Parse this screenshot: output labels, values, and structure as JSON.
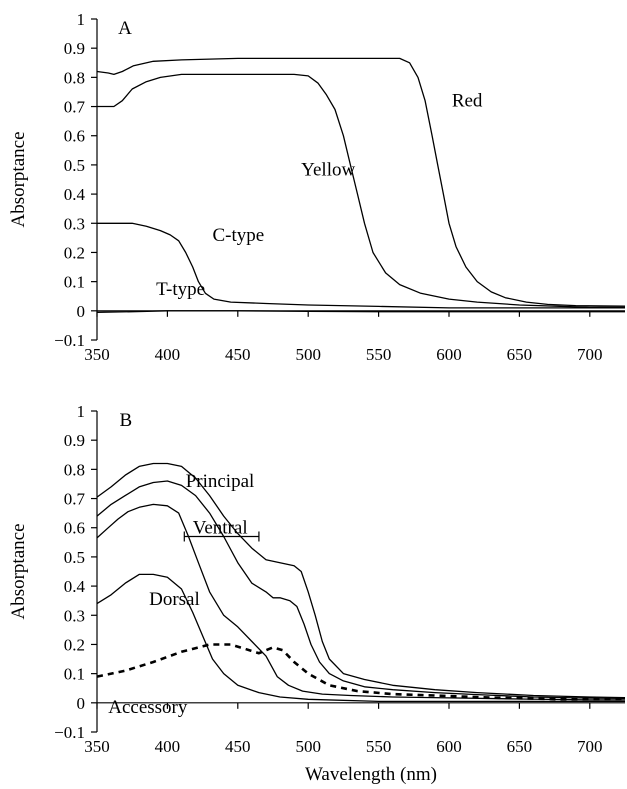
{
  "chart_data": [
    {
      "type": "line",
      "panel": "A",
      "xlabel": "",
      "ylabel": "Absorptance",
      "xlim": [
        350,
        725
      ],
      "ylim": [
        -0.1,
        1
      ],
      "xticks": [
        350,
        400,
        450,
        500,
        550,
        600,
        650,
        700
      ],
      "yticks": [
        -0.1,
        0,
        0.1,
        0.2,
        0.3,
        0.4,
        0.5,
        0.6,
        0.7,
        0.8,
        0.9,
        1
      ],
      "grid": false,
      "series": [
        {
          "name": "Red",
          "style": "solid",
          "points": [
            [
              350,
              0.82
            ],
            [
              358,
              0.815
            ],
            [
              362,
              0.81
            ],
            [
              368,
              0.82
            ],
            [
              376,
              0.84
            ],
            [
              390,
              0.855
            ],
            [
              410,
              0.86
            ],
            [
              450,
              0.865
            ],
            [
              500,
              0.865
            ],
            [
              550,
              0.865
            ],
            [
              565,
              0.865
            ],
            [
              572,
              0.85
            ],
            [
              578,
              0.8
            ],
            [
              583,
              0.72
            ],
            [
              588,
              0.6
            ],
            [
              592,
              0.5
            ],
            [
              596,
              0.4
            ],
            [
              600,
              0.3
            ],
            [
              605,
              0.22
            ],
            [
              612,
              0.15
            ],
            [
              620,
              0.1
            ],
            [
              630,
              0.065
            ],
            [
              640,
              0.045
            ],
            [
              655,
              0.03
            ],
            [
              670,
              0.022
            ],
            [
              690,
              0.018
            ],
            [
              725,
              0.016
            ]
          ]
        },
        {
          "name": "Yellow",
          "style": "solid",
          "points": [
            [
              350,
              0.7
            ],
            [
              358,
              0.7
            ],
            [
              362,
              0.7
            ],
            [
              368,
              0.72
            ],
            [
              375,
              0.76
            ],
            [
              385,
              0.785
            ],
            [
              395,
              0.8
            ],
            [
              410,
              0.81
            ],
            [
              450,
              0.81
            ],
            [
              490,
              0.81
            ],
            [
              500,
              0.805
            ],
            [
              507,
              0.78
            ],
            [
              513,
              0.74
            ],
            [
              519,
              0.69
            ],
            [
              525,
              0.6
            ],
            [
              530,
              0.5
            ],
            [
              535,
              0.4
            ],
            [
              540,
              0.3
            ],
            [
              546,
              0.2
            ],
            [
              555,
              0.13
            ],
            [
              565,
              0.09
            ],
            [
              580,
              0.06
            ],
            [
              600,
              0.04
            ],
            [
              620,
              0.03
            ],
            [
              650,
              0.02
            ],
            [
              700,
              0.012
            ],
            [
              725,
              0.012
            ]
          ]
        },
        {
          "name": "C-type",
          "style": "solid",
          "points": [
            [
              350,
              0.3
            ],
            [
              360,
              0.3
            ],
            [
              375,
              0.3
            ],
            [
              385,
              0.29
            ],
            [
              395,
              0.275
            ],
            [
              402,
              0.26
            ],
            [
              408,
              0.24
            ],
            [
              413,
              0.2
            ],
            [
              418,
              0.15
            ],
            [
              422,
              0.1
            ],
            [
              427,
              0.06
            ],
            [
              433,
              0.04
            ],
            [
              445,
              0.03
            ],
            [
              470,
              0.025
            ],
            [
              500,
              0.02
            ],
            [
              550,
              0.015
            ],
            [
              600,
              0.01
            ],
            [
              650,
              0.01
            ],
            [
              725,
              0.01
            ]
          ]
        },
        {
          "name": "T-type",
          "style": "solid",
          "points": [
            [
              350,
              -0.005
            ],
            [
              375,
              -0.003
            ],
            [
              400,
              0
            ],
            [
              450,
              0
            ],
            [
              500,
              -0.002
            ],
            [
              550,
              -0.003
            ],
            [
              600,
              -0.003
            ],
            [
              650,
              -0.003
            ],
            [
              700,
              -0.003
            ],
            [
              725,
              -0.003
            ]
          ]
        }
      ],
      "annotations": [
        {
          "text": "Red",
          "x": 602,
          "y": 0.72
        },
        {
          "text": "Yellow",
          "x": 495,
          "y": 0.485
        },
        {
          "text": "C-type",
          "x": 432,
          "y": 0.26
        },
        {
          "text": "T-type",
          "x": 392,
          "y": 0.075
        },
        {
          "text": "A",
          "x": 365,
          "y": 0.97
        }
      ]
    },
    {
      "type": "line",
      "panel": "B",
      "xlabel": "Wavelength (nm)",
      "ylabel": "Absorptance",
      "xlim": [
        350,
        725
      ],
      "ylim": [
        -0.1,
        1
      ],
      "xticks": [
        350,
        400,
        450,
        500,
        550,
        600,
        650,
        700
      ],
      "yticks": [
        -0.1,
        0,
        0.1,
        0.2,
        0.3,
        0.4,
        0.5,
        0.6,
        0.7,
        0.8,
        0.9,
        1
      ],
      "grid": false,
      "series": [
        {
          "name": "Principal",
          "style": "solid",
          "points": [
            [
              350,
              0.705
            ],
            [
              360,
              0.74
            ],
            [
              370,
              0.78
            ],
            [
              380,
              0.81
            ],
            [
              390,
              0.82
            ],
            [
              400,
              0.82
            ],
            [
              410,
              0.81
            ],
            [
              420,
              0.77
            ],
            [
              430,
              0.71
            ],
            [
              440,
              0.64
            ],
            [
              450,
              0.58
            ],
            [
              460,
              0.53
            ],
            [
              470,
              0.49
            ],
            [
              480,
              0.48
            ],
            [
              490,
              0.47
            ],
            [
              495,
              0.45
            ],
            [
              500,
              0.38
            ],
            [
              505,
              0.3
            ],
            [
              510,
              0.21
            ],
            [
              515,
              0.15
            ],
            [
              525,
              0.1
            ],
            [
              540,
              0.08
            ],
            [
              560,
              0.06
            ],
            [
              590,
              0.045
            ],
            [
              620,
              0.035
            ],
            [
              660,
              0.025
            ],
            [
              700,
              0.02
            ],
            [
              725,
              0.018
            ]
          ]
        },
        {
          "name": "Ventral",
          "style": "solid",
          "points": [
            [
              350,
              0.64
            ],
            [
              360,
              0.68
            ],
            [
              370,
              0.71
            ],
            [
              380,
              0.74
            ],
            [
              390,
              0.755
            ],
            [
              400,
              0.76
            ],
            [
              410,
              0.745
            ],
            [
              420,
              0.71
            ],
            [
              430,
              0.65
            ],
            [
              440,
              0.57
            ],
            [
              450,
              0.48
            ],
            [
              460,
              0.41
            ],
            [
              470,
              0.38
            ],
            [
              475,
              0.36
            ],
            [
              480,
              0.36
            ],
            [
              487,
              0.35
            ],
            [
              492,
              0.33
            ],
            [
              497,
              0.27
            ],
            [
              502,
              0.2
            ],
            [
              508,
              0.14
            ],
            [
              515,
              0.1
            ],
            [
              525,
              0.075
            ],
            [
              540,
              0.055
            ],
            [
              560,
              0.045
            ],
            [
              590,
              0.035
            ],
            [
              620,
              0.028
            ],
            [
              660,
              0.02
            ],
            [
              700,
              0.016
            ],
            [
              725,
              0.015
            ]
          ]
        },
        {
          "name": "Dorsal",
          "style": "solid",
          "points": [
            [
              350,
              0.565
            ],
            [
              358,
              0.6
            ],
            [
              365,
              0.63
            ],
            [
              372,
              0.655
            ],
            [
              380,
              0.67
            ],
            [
              390,
              0.68
            ],
            [
              400,
              0.675
            ],
            [
              408,
              0.65
            ],
            [
              415,
              0.57
            ],
            [
              422,
              0.48
            ],
            [
              430,
              0.38
            ],
            [
              440,
              0.3
            ],
            [
              450,
              0.26
            ],
            [
              460,
              0.21
            ],
            [
              470,
              0.16
            ],
            [
              478,
              0.09
            ],
            [
              486,
              0.06
            ],
            [
              496,
              0.04
            ],
            [
              510,
              0.03
            ],
            [
              530,
              0.025
            ],
            [
              560,
              0.02
            ],
            [
              600,
              0.017
            ],
            [
              650,
              0.013
            ],
            [
              700,
              0.01
            ],
            [
              725,
              0.01
            ]
          ]
        },
        {
          "name": "Accessory",
          "style": "solid",
          "points": [
            [
              350,
              0.34
            ],
            [
              360,
              0.37
            ],
            [
              370,
              0.41
            ],
            [
              380,
              0.44
            ],
            [
              390,
              0.44
            ],
            [
              400,
              0.43
            ],
            [
              410,
              0.39
            ],
            [
              418,
              0.31
            ],
            [
              425,
              0.23
            ],
            [
              432,
              0.15
            ],
            [
              440,
              0.1
            ],
            [
              450,
              0.06
            ],
            [
              465,
              0.035
            ],
            [
              480,
              0.02
            ],
            [
              500,
              0.012
            ],
            [
              550,
              0.005
            ],
            [
              600,
              0.005
            ],
            [
              650,
              0.005
            ],
            [
              725,
              0.005
            ]
          ]
        },
        {
          "name": "",
          "style": "dashed",
          "points": [
            [
              350,
              0.09
            ],
            [
              370,
              0.11
            ],
            [
              390,
              0.14
            ],
            [
              410,
              0.175
            ],
            [
              430,
              0.2
            ],
            [
              445,
              0.2
            ],
            [
              455,
              0.185
            ],
            [
              465,
              0.17
            ],
            [
              475,
              0.19
            ],
            [
              482,
              0.18
            ],
            [
              490,
              0.14
            ],
            [
              500,
              0.1
            ],
            [
              515,
              0.06
            ],
            [
              535,
              0.04
            ],
            [
              560,
              0.03
            ],
            [
              590,
              0.025
            ],
            [
              630,
              0.018
            ],
            [
              680,
              0.012
            ],
            [
              725,
              0.012
            ]
          ]
        }
      ],
      "error_bar": {
        "y": 0.57,
        "x_from": 412,
        "x_to": 465
      },
      "annotations": [
        {
          "text": "Principal",
          "x": 413,
          "y": 0.76
        },
        {
          "text": "Ventral",
          "x": 418,
          "y": 0.6
        },
        {
          "text": "Dorsal",
          "x": 387,
          "y": 0.355
        },
        {
          "text": "Accessory",
          "x": 358,
          "y": -0.015
        },
        {
          "text": "B",
          "x": 366,
          "y": 0.97
        }
      ]
    }
  ]
}
